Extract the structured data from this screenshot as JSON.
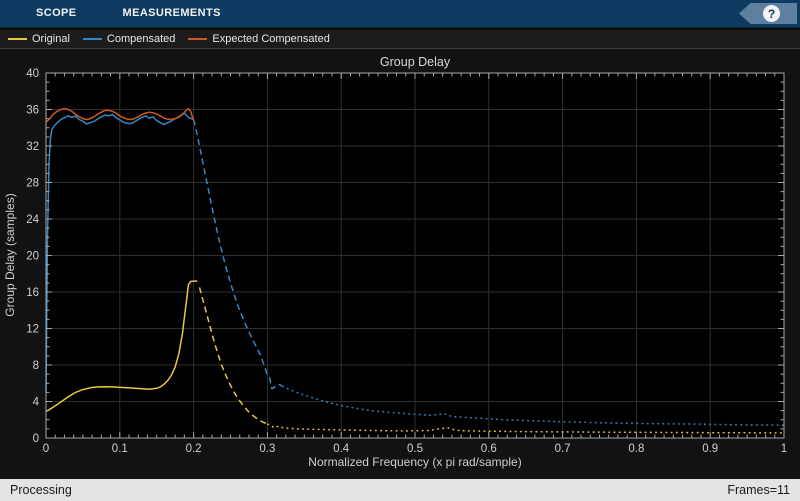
{
  "toolbar": {
    "tabs": [
      {
        "label": "SCOPE"
      },
      {
        "label": "MEASUREMENTS"
      }
    ],
    "help_label": "?"
  },
  "status_bar": {
    "left": "Processing",
    "right": "Frames=11"
  },
  "colors": {
    "toolbar_bg": "#0D3A5E",
    "help_banner": "#5D7FA0",
    "legend_bg": "#1C1C1C",
    "chart_bg": "#121212",
    "axes_bg": "#000000",
    "grid": "#303030",
    "axis": "#A8A8A8",
    "tick_text": "#CFCFCF",
    "status_bg": "#E3E3E3",
    "status_text": "#1A1A1A"
  },
  "chart_data": {
    "type": "line",
    "title": "Group Delay",
    "xlabel": "Normalized Frequency (x pi rad/sample)",
    "ylabel": "Group Delay (samples)",
    "xlim": [
      0,
      1
    ],
    "ylim": [
      0,
      40
    ],
    "xticks": [
      0,
      0.1,
      0.2,
      0.3,
      0.4,
      0.5,
      0.6,
      0.7,
      0.8,
      0.9,
      1
    ],
    "xtick_labels": [
      "0",
      "0.1",
      "0.2",
      "0.3",
      "0.4",
      "0.5",
      "0.6",
      "0.7",
      "0.8",
      "0.9",
      "1"
    ],
    "yticks": [
      0,
      4,
      8,
      12,
      16,
      20,
      24,
      28,
      32,
      36,
      40
    ],
    "ytick_labels": [
      "0",
      "4",
      "8",
      "12",
      "16",
      "20",
      "24",
      "28",
      "32",
      "36",
      "40"
    ],
    "x_minor_step": 0.0125,
    "y_minor_step": 1,
    "grid": true,
    "legend_position": "top",
    "series": [
      {
        "name": "Original",
        "color": "#E9C63F",
        "segments": [
          {
            "style": "solid",
            "points": [
              [
                0,
                2.9
              ],
              [
                0.005,
                3.15
              ],
              [
                0.01,
                3.4
              ],
              [
                0.02,
                3.95
              ],
              [
                0.03,
                4.5
              ],
              [
                0.04,
                5.0
              ],
              [
                0.05,
                5.3
              ],
              [
                0.06,
                5.5
              ],
              [
                0.07,
                5.6
              ],
              [
                0.08,
                5.62
              ],
              [
                0.09,
                5.6
              ],
              [
                0.1,
                5.55
              ],
              [
                0.11,
                5.5
              ],
              [
                0.12,
                5.45
              ],
              [
                0.13,
                5.4
              ],
              [
                0.14,
                5.35
              ],
              [
                0.15,
                5.45
              ],
              [
                0.155,
                5.6
              ],
              [
                0.16,
                5.9
              ],
              [
                0.165,
                6.3
              ],
              [
                0.17,
                6.9
              ],
              [
                0.175,
                7.8
              ],
              [
                0.18,
                9.2
              ],
              [
                0.185,
                11.5
              ],
              [
                0.188,
                13.5
              ],
              [
                0.191,
                15.5
              ],
              [
                0.193,
                16.8
              ],
              [
                0.196,
                17.15
              ],
              [
                0.2,
                17.2
              ],
              [
                0.205,
                17.2
              ]
            ]
          },
          {
            "style": "dashed",
            "points": [
              [
                0.208,
                16.5
              ],
              [
                0.213,
                15.0
              ],
              [
                0.218,
                13.5
              ],
              [
                0.223,
                12.0
              ],
              [
                0.228,
                10.5
              ],
              [
                0.233,
                9.2
              ],
              [
                0.238,
                8.0
              ],
              [
                0.243,
                7.0
              ],
              [
                0.248,
                6.1
              ],
              [
                0.253,
                5.3
              ],
              [
                0.258,
                4.6
              ],
              [
                0.263,
                4.0
              ],
              [
                0.268,
                3.5
              ],
              [
                0.273,
                3.0
              ],
              [
                0.278,
                2.6
              ],
              [
                0.283,
                2.3
              ],
              [
                0.29,
                1.9
              ],
              [
                0.295,
                1.7
              ],
              [
                0.3,
                1.55
              ]
            ]
          },
          {
            "style": "dotted",
            "points": [
              [
                0.3,
                1.55
              ],
              [
                0.305,
                1.3
              ],
              [
                0.31,
                1.12
              ],
              [
                0.315,
                1.3
              ],
              [
                0.32,
                1.15
              ],
              [
                0.33,
                1.05
              ],
              [
                0.35,
                0.98
              ],
              [
                0.38,
                0.92
              ],
              [
                0.4,
                0.88
              ],
              [
                0.43,
                0.84
              ],
              [
                0.46,
                0.8
              ],
              [
                0.49,
                0.78
              ],
              [
                0.52,
                0.82
              ],
              [
                0.535,
                1.05
              ],
              [
                0.545,
                1.1
              ],
              [
                0.555,
                0.85
              ],
              [
                0.57,
                0.78
              ],
              [
                0.6,
                0.74
              ],
              [
                0.64,
                0.7
              ],
              [
                0.68,
                0.68
              ],
              [
                0.72,
                0.66
              ],
              [
                0.76,
                0.64
              ],
              [
                0.8,
                0.62
              ],
              [
                0.85,
                0.6
              ],
              [
                0.9,
                0.58
              ],
              [
                0.95,
                0.57
              ],
              [
                1,
                0.56
              ]
            ]
          }
        ]
      },
      {
        "name": "Compensated",
        "color": "#3287C8",
        "segments": [
          {
            "style": "solid",
            "points": [
              [
                0,
                5
              ],
              [
                0.002,
                22
              ],
              [
                0.004,
                30
              ],
              [
                0.006,
                32.8
              ],
              [
                0.008,
                33.8
              ],
              [
                0.012,
                34.3
              ],
              [
                0.016,
                34.6
              ],
              [
                0.02,
                34.9
              ],
              [
                0.025,
                35.1
              ],
              [
                0.03,
                35.3
              ],
              [
                0.035,
                35.15
              ],
              [
                0.04,
                35.3
              ],
              [
                0.045,
                34.9
              ],
              [
                0.05,
                34.7
              ],
              [
                0.055,
                34.4
              ],
              [
                0.06,
                34.55
              ],
              [
                0.065,
                34.7
              ],
              [
                0.07,
                34.95
              ],
              [
                0.075,
                35.2
              ],
              [
                0.08,
                35.4
              ],
              [
                0.085,
                35.3
              ],
              [
                0.09,
                35.45
              ],
              [
                0.095,
                35.1
              ],
              [
                0.1,
                34.85
              ],
              [
                0.105,
                34.6
              ],
              [
                0.11,
                34.5
              ],
              [
                0.115,
                34.45
              ],
              [
                0.12,
                34.65
              ],
              [
                0.125,
                34.9
              ],
              [
                0.13,
                35.15
              ],
              [
                0.135,
                35.3
              ],
              [
                0.14,
                35.05
              ],
              [
                0.145,
                35.2
              ],
              [
                0.15,
                34.8
              ],
              [
                0.155,
                34.55
              ],
              [
                0.16,
                34.35
              ],
              [
                0.165,
                34.55
              ],
              [
                0.17,
                34.75
              ],
              [
                0.175,
                35.0
              ],
              [
                0.18,
                35.15
              ],
              [
                0.185,
                35.45
              ],
              [
                0.188,
                35.6
              ],
              [
                0.191,
                35.3
              ],
              [
                0.194,
                35.1
              ],
              [
                0.197,
                35.0
              ],
              [
                0.2,
                34.9
              ]
            ]
          },
          {
            "style": "dashed",
            "points": [
              [
                0.2,
                34.9
              ],
              [
                0.204,
                33.5
              ],
              [
                0.208,
                32.0
              ],
              [
                0.212,
                30.4
              ],
              [
                0.216,
                28.8
              ],
              [
                0.22,
                27.2
              ],
              [
                0.224,
                25.6
              ],
              [
                0.228,
                24.1
              ],
              [
                0.232,
                22.6
              ],
              [
                0.236,
                21.2
              ],
              [
                0.24,
                19.9
              ],
              [
                0.245,
                18.4
              ],
              [
                0.25,
                17.0
              ],
              [
                0.255,
                15.7
              ],
              [
                0.26,
                14.5
              ],
              [
                0.265,
                13.5
              ],
              [
                0.27,
                12.5
              ],
              [
                0.275,
                11.6
              ],
              [
                0.28,
                10.8
              ],
              [
                0.285,
                10.0
              ],
              [
                0.29,
                9.2
              ],
              [
                0.295,
                8.1
              ],
              [
                0.3,
                6.9
              ],
              [
                0.303,
                6.6
              ],
              [
                0.306,
                5.4
              ],
              [
                0.31,
                5.6
              ],
              [
                0.315,
                5.9
              ],
              [
                0.32,
                5.7
              ]
            ]
          },
          {
            "style": "dotted",
            "points": [
              [
                0.32,
                5.7
              ],
              [
                0.33,
                5.3
              ],
              [
                0.34,
                5.0
              ],
              [
                0.35,
                4.7
              ],
              [
                0.36,
                4.45
              ],
              [
                0.37,
                4.2
              ],
              [
                0.38,
                3.95
              ],
              [
                0.39,
                3.75
              ],
              [
                0.4,
                3.55
              ],
              [
                0.42,
                3.25
              ],
              [
                0.44,
                3.0
              ],
              [
                0.46,
                2.85
              ],
              [
                0.48,
                2.72
              ],
              [
                0.5,
                2.6
              ],
              [
                0.52,
                2.5
              ],
              [
                0.53,
                2.55
              ],
              [
                0.54,
                2.65
              ],
              [
                0.55,
                2.35
              ],
              [
                0.56,
                2.3
              ],
              [
                0.58,
                2.2
              ],
              [
                0.6,
                2.1
              ],
              [
                0.62,
                2.0
              ],
              [
                0.65,
                1.92
              ],
              [
                0.68,
                1.84
              ],
              [
                0.7,
                1.78
              ],
              [
                0.73,
                1.72
              ],
              [
                0.76,
                1.66
              ],
              [
                0.8,
                1.6
              ],
              [
                0.84,
                1.56
              ],
              [
                0.88,
                1.52
              ],
              [
                0.92,
                1.47
              ],
              [
                0.96,
                1.43
              ],
              [
                1,
                1.4
              ]
            ]
          }
        ]
      },
      {
        "name": "Expected Compensated",
        "color": "#D1571E",
        "segments": [
          {
            "style": "solid",
            "points": [
              [
                0,
                34.6
              ],
              [
                0.005,
                35.0
              ],
              [
                0.01,
                35.5
              ],
              [
                0.015,
                35.8
              ],
              [
                0.02,
                36.0
              ],
              [
                0.025,
                36.1
              ],
              [
                0.03,
                36.0
              ],
              [
                0.035,
                35.8
              ],
              [
                0.04,
                35.5
              ],
              [
                0.045,
                35.2
              ],
              [
                0.05,
                35.0
              ],
              [
                0.055,
                34.9
              ],
              [
                0.06,
                35.0
              ],
              [
                0.065,
                35.2
              ],
              [
                0.07,
                35.5
              ],
              [
                0.075,
                35.7
              ],
              [
                0.08,
                35.9
              ],
              [
                0.085,
                35.9
              ],
              [
                0.09,
                35.8
              ],
              [
                0.095,
                35.6
              ],
              [
                0.1,
                35.3
              ],
              [
                0.105,
                35.1
              ],
              [
                0.11,
                34.95
              ],
              [
                0.115,
                34.9
              ],
              [
                0.12,
                35.0
              ],
              [
                0.125,
                35.2
              ],
              [
                0.13,
                35.45
              ],
              [
                0.135,
                35.6
              ],
              [
                0.14,
                35.7
              ],
              [
                0.145,
                35.65
              ],
              [
                0.15,
                35.5
              ],
              [
                0.155,
                35.3
              ],
              [
                0.16,
                35.05
              ],
              [
                0.165,
                34.95
              ],
              [
                0.17,
                34.9
              ],
              [
                0.175,
                35.0
              ],
              [
                0.18,
                35.2
              ],
              [
                0.185,
                35.5
              ],
              [
                0.19,
                35.9
              ],
              [
                0.193,
                36.1
              ],
              [
                0.196,
                35.8
              ],
              [
                0.2,
                34.8
              ]
            ]
          }
        ]
      }
    ]
  }
}
